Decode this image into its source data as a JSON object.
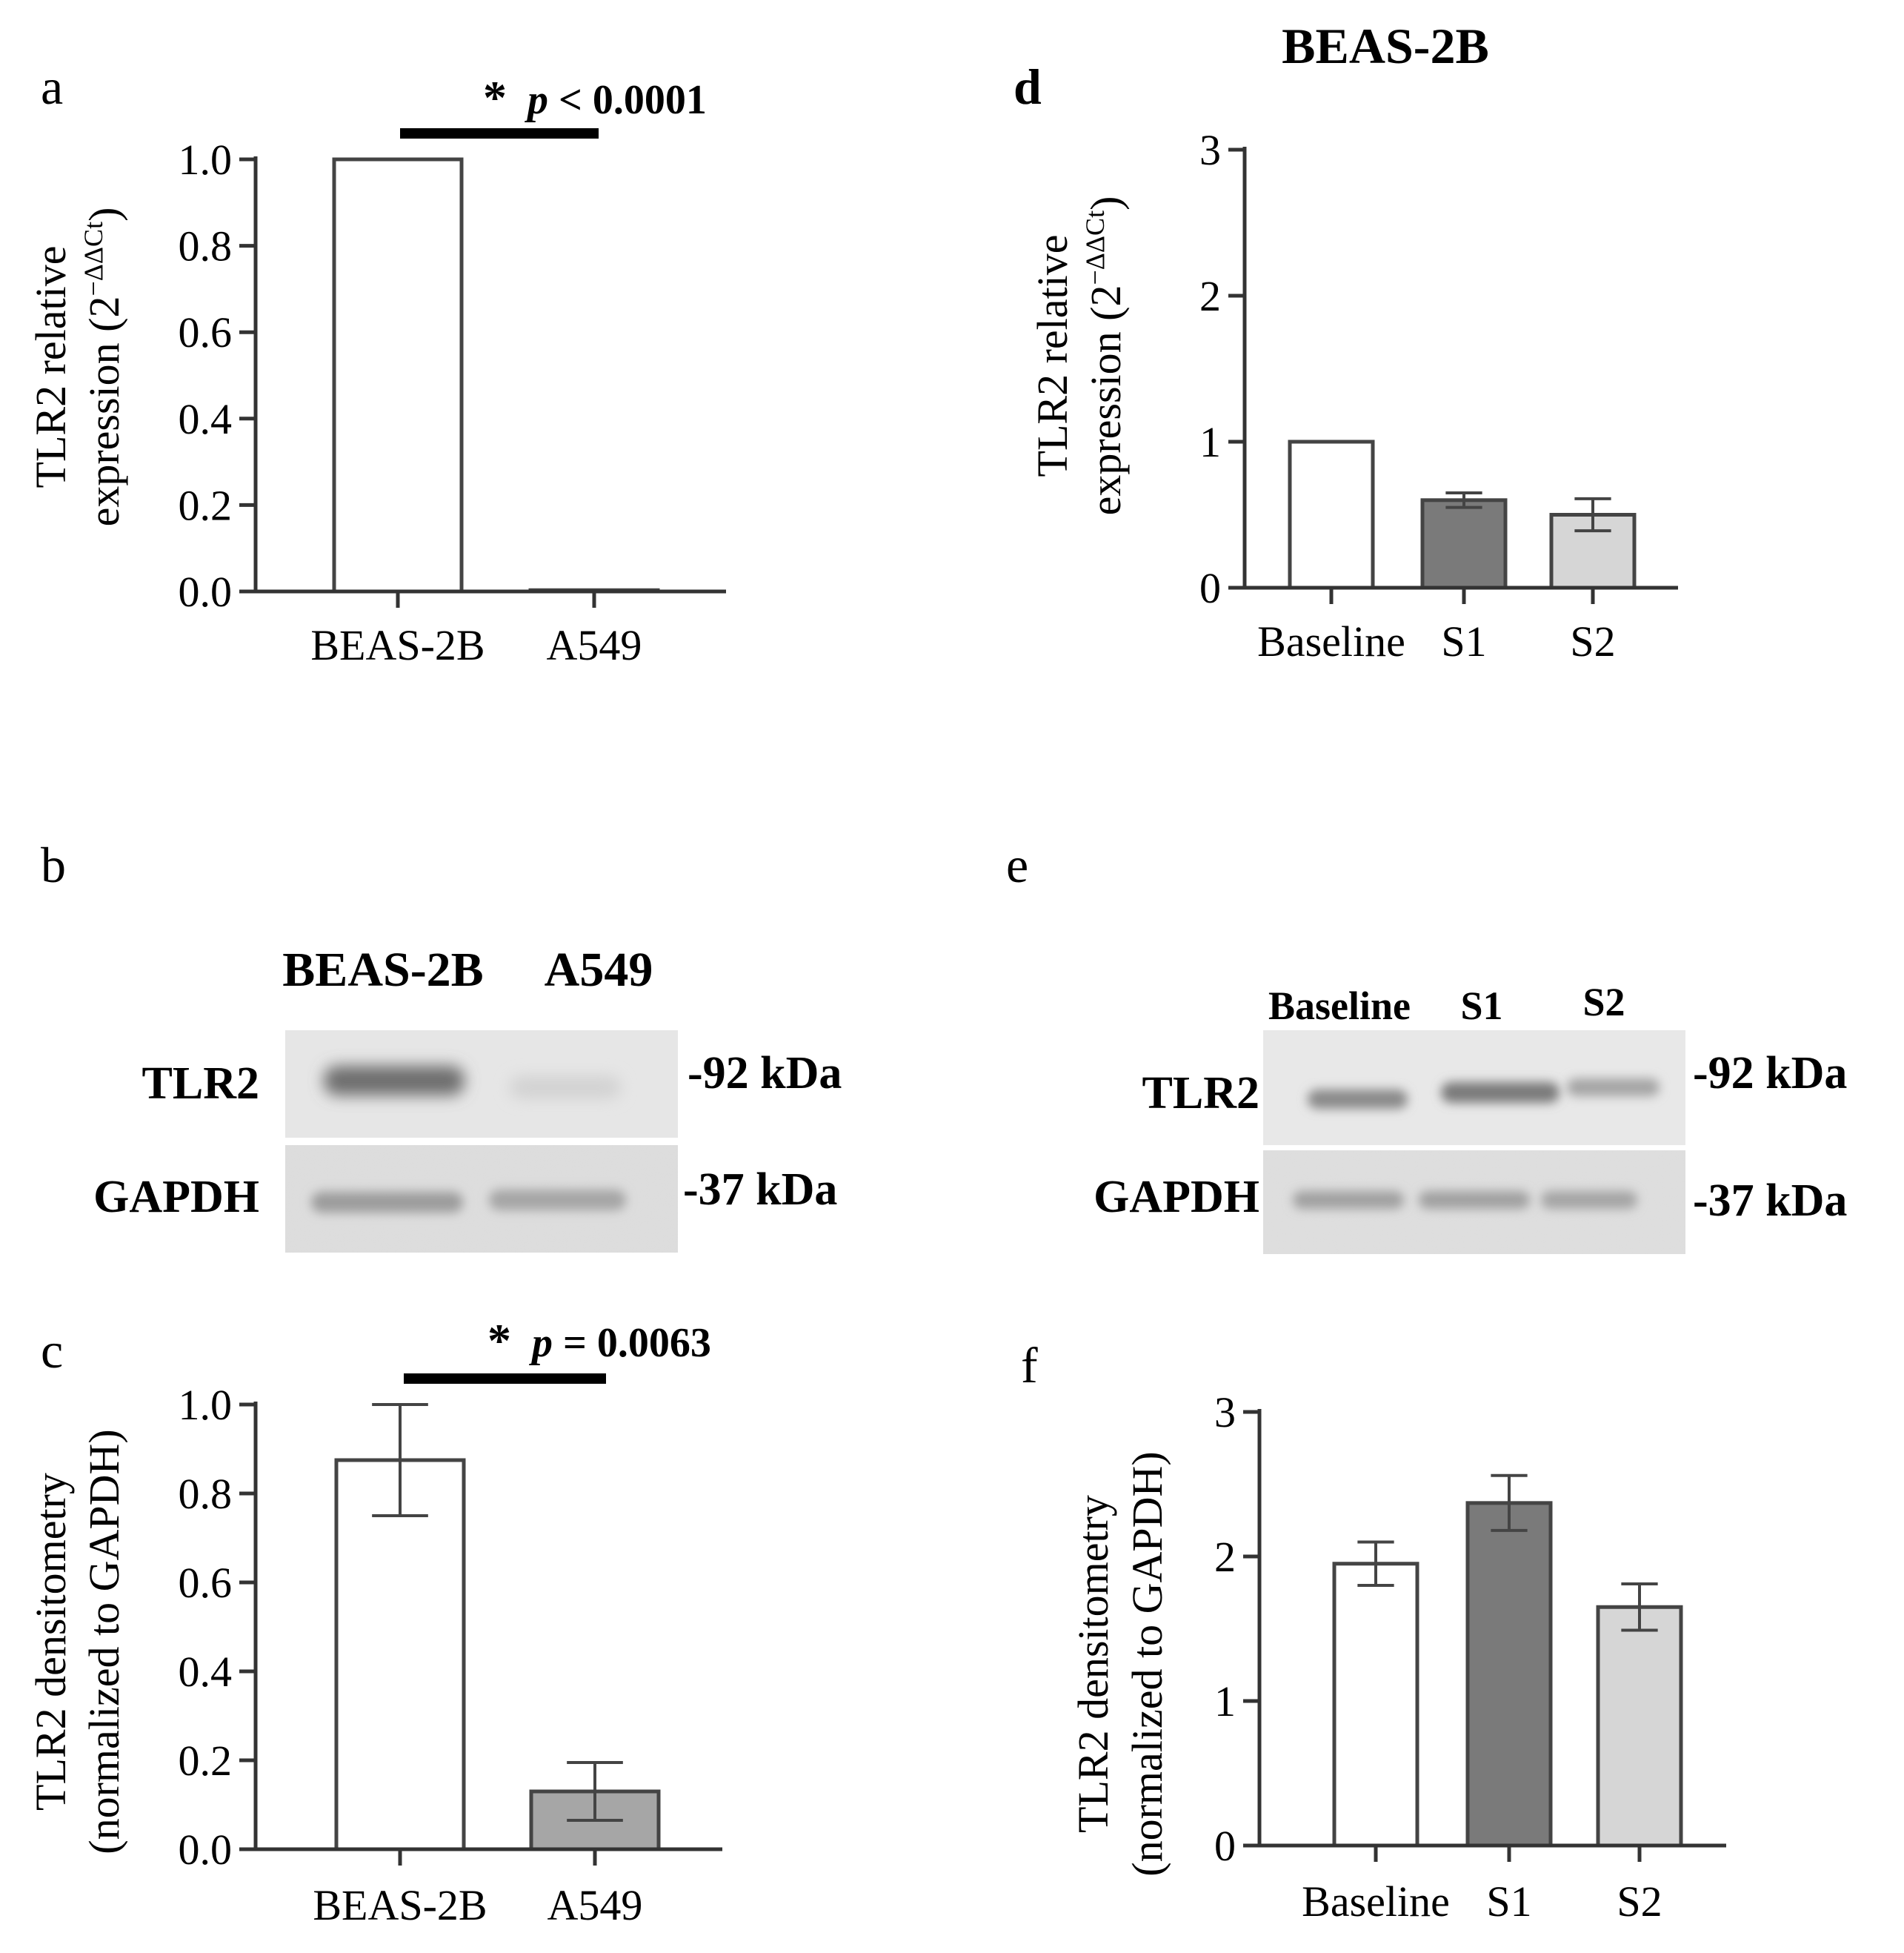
{
  "figure": {
    "top_title": "BEAS-2B",
    "panels": {
      "a": {
        "letter": "a",
        "ylabel_line1": "TLR2 relative",
        "ylabel_line2": "expression (2",
        "ylabel_sup": "−ΔΔCt",
        "ylabel_close": ")",
        "significance": {
          "star": "*",
          "p_symbol": "p",
          "text": " < 0.0001"
        }
      },
      "b": {
        "letter": "b",
        "lane_labels": [
          "BEAS-2B",
          "A549"
        ],
        "rows": [
          {
            "protein": "TLR2",
            "mw": "-92 kDa"
          },
          {
            "protein": "GAPDH",
            "mw": "-37 kDa"
          }
        ]
      },
      "c": {
        "letter": "c",
        "ylabel_line1": "TLR2 densitometry",
        "ylabel_line2": "(normalized to GAPDH)",
        "significance": {
          "star": "*",
          "p_symbol": "p",
          "text": " = 0.0063"
        }
      },
      "d": {
        "letter": "d",
        "ylabel_line1": "TLR2 relative",
        "ylabel_line2": "expression (2",
        "ylabel_sup": "−ΔΔCt",
        "ylabel_close": ")"
      },
      "e": {
        "letter": "e",
        "lane_labels": [
          "Baseline",
          "S1",
          "S2"
        ],
        "rows": [
          {
            "protein": "TLR2",
            "mw": "-92 kDa"
          },
          {
            "protein": "GAPDH",
            "mw": "-37 kDa"
          }
        ]
      },
      "f": {
        "letter": "f",
        "ylabel_line1": "TLR2 densitometry",
        "ylabel_line2": "(normalized to GAPDH)"
      }
    }
  },
  "colors": {
    "white_bar": "#ffffff",
    "dark_gray_bar": "#7a7a7a",
    "mid_gray_bar": "#a6a6a6",
    "light_gray_bar": "#d6d6d6",
    "outline": "#444444"
  },
  "chart_data": [
    {
      "id": "a",
      "type": "bar",
      "categories": [
        "BEAS-2B",
        "A549"
      ],
      "values": [
        1.0,
        0.003
      ],
      "error": [
        0,
        0
      ],
      "fill": [
        "white_bar",
        "white_bar"
      ],
      "ylim": [
        0,
        1.0
      ],
      "yticks": [
        "0.0",
        "0.2",
        "0.4",
        "0.6",
        "0.8",
        "1.0"
      ],
      "ytick_values": [
        0,
        0.2,
        0.4,
        0.6,
        0.8,
        1.0
      ],
      "ylabel": "TLR2 relative expression (2−ΔΔCt)",
      "annotation": "* p < 0.0001"
    },
    {
      "id": "c",
      "type": "bar",
      "categories": [
        "BEAS-2B",
        "A549"
      ],
      "values": [
        0.875,
        0.13
      ],
      "error": [
        0.125,
        0.065
      ],
      "fill": [
        "white_bar",
        "mid_gray_bar"
      ],
      "ylim": [
        0,
        1.0
      ],
      "yticks": [
        "0.0",
        "0.2",
        "0.4",
        "0.6",
        "0.8",
        "1.0"
      ],
      "ytick_values": [
        0,
        0.2,
        0.4,
        0.6,
        0.8,
        1.0
      ],
      "ylabel": "TLR2 densitometry (normalized to GAPDH)",
      "annotation": "* p = 0.0063"
    },
    {
      "id": "d",
      "type": "bar",
      "categories": [
        "Baseline",
        "S1",
        "S2"
      ],
      "values": [
        1.0,
        0.6,
        0.5
      ],
      "error": [
        0,
        0.05,
        0.11
      ],
      "fill": [
        "white_bar",
        "dark_gray_bar",
        "light_gray_bar"
      ],
      "ylim": [
        0,
        3
      ],
      "yticks": [
        "0",
        "1",
        "2",
        "3"
      ],
      "ytick_values": [
        0,
        1,
        2,
        3
      ],
      "ylabel": "TLR2 relative expression (2−ΔΔCt)",
      "title": "BEAS-2B"
    },
    {
      "id": "f",
      "type": "bar",
      "categories": [
        "Baseline",
        "S1",
        "S2"
      ],
      "values": [
        1.95,
        2.37,
        1.65
      ],
      "error": [
        0.15,
        0.19,
        0.16
      ],
      "fill": [
        "white_bar",
        "dark_gray_bar",
        "light_gray_bar"
      ],
      "ylim": [
        0,
        3
      ],
      "yticks": [
        "0",
        "1",
        "2",
        "3"
      ],
      "ytick_values": [
        0,
        1,
        2,
        3
      ],
      "ylabel": "TLR2 densitometry (normalized to GAPDH)"
    }
  ]
}
